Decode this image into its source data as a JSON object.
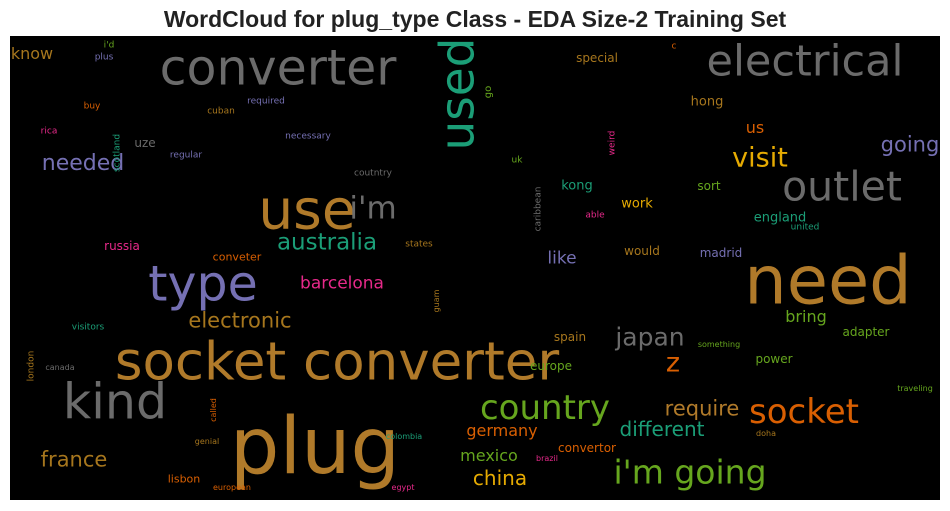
{
  "title": "WordCloud for plug_type Class - EDA Size-2 Training Set",
  "chart_data": {
    "type": "wordcloud",
    "title": "WordCloud for plug_type Class - EDA Size-2 Training Set",
    "background": "#000000",
    "words": [
      {
        "text": "plug",
        "weight": 1.0,
        "color": "#b07a2a"
      },
      {
        "text": "need",
        "weight": 0.86,
        "color": "#b07a2a"
      },
      {
        "text": "socket converter",
        "weight": 0.68,
        "color": "#b07a2a"
      },
      {
        "text": "use",
        "weight": 0.71,
        "color": "#b07a2a"
      },
      {
        "text": "kind",
        "weight": 0.63,
        "color": "#6b6b6b"
      },
      {
        "text": "type",
        "weight": 0.63,
        "color": "#7570b3"
      },
      {
        "text": "converter",
        "weight": 0.63,
        "color": "#6b6b6b"
      },
      {
        "text": "used",
        "weight": 0.6,
        "color": "#1b9e77",
        "vertical": true
      },
      {
        "text": "electrical",
        "weight": 0.55,
        "color": "#6b6b6b"
      },
      {
        "text": "outlet",
        "weight": 0.52,
        "color": "#6b6b6b"
      },
      {
        "text": "i'm",
        "weight": 0.4,
        "color": "#6b6b6b"
      },
      {
        "text": "socket",
        "weight": 0.44,
        "color": "#d95f02"
      },
      {
        "text": "country",
        "weight": 0.44,
        "color": "#66a61e"
      },
      {
        "text": "i'm going",
        "weight": 0.42,
        "color": "#66a61e"
      },
      {
        "text": "australia",
        "weight": 0.3,
        "color": "#1b9e77"
      },
      {
        "text": "visit",
        "weight": 0.34,
        "color": "#e6ab02"
      },
      {
        "text": "japan",
        "weight": 0.32,
        "color": "#6b6b6b"
      },
      {
        "text": "z",
        "weight": 0.34,
        "color": "#d95f02"
      },
      {
        "text": "needed",
        "weight": 0.28,
        "color": "#7570b3"
      },
      {
        "text": "going",
        "weight": 0.27,
        "color": "#7570b3"
      },
      {
        "text": "electronic",
        "weight": 0.27,
        "color": "#a6761d"
      },
      {
        "text": "require",
        "weight": 0.27,
        "color": "#b07a2a"
      },
      {
        "text": "different",
        "weight": 0.26,
        "color": "#1b9e77"
      },
      {
        "text": "france",
        "weight": 0.27,
        "color": "#a6761d"
      },
      {
        "text": "china",
        "weight": 0.25,
        "color": "#e6ab02"
      },
      {
        "text": "like",
        "weight": 0.22,
        "color": "#7570b3"
      },
      {
        "text": "barcelona",
        "weight": 0.22,
        "color": "#e7298a"
      },
      {
        "text": "germany",
        "weight": 0.2,
        "color": "#d95f02"
      },
      {
        "text": "mexico",
        "weight": 0.2,
        "color": "#66a61e"
      },
      {
        "text": "bring",
        "weight": 0.2,
        "color": "#66a61e"
      },
      {
        "text": "us",
        "weight": 0.2,
        "color": "#d95f02"
      },
      {
        "text": "know",
        "weight": 0.2,
        "color": "#a6761d"
      },
      {
        "text": "kong",
        "weight": 0.17,
        "color": "#1b9e77"
      },
      {
        "text": "work",
        "weight": 0.17,
        "color": "#e6ab02"
      },
      {
        "text": "england",
        "weight": 0.17,
        "color": "#1b9e77"
      },
      {
        "text": "hong",
        "weight": 0.17,
        "color": "#a6761d"
      },
      {
        "text": "sort",
        "weight": 0.16,
        "color": "#66a61e"
      },
      {
        "text": "madrid",
        "weight": 0.16,
        "color": "#7570b3"
      },
      {
        "text": "would",
        "weight": 0.16,
        "color": "#a6761d"
      },
      {
        "text": "adapter",
        "weight": 0.16,
        "color": "#66a61e"
      },
      {
        "text": "power",
        "weight": 0.15,
        "color": "#66a61e"
      },
      {
        "text": "spain",
        "weight": 0.15,
        "color": "#a6761d"
      },
      {
        "text": "europe",
        "weight": 0.15,
        "color": "#66a61e"
      },
      {
        "text": "convertor",
        "weight": 0.15,
        "color": "#d95f02"
      },
      {
        "text": "special",
        "weight": 0.15,
        "color": "#a6761d"
      },
      {
        "text": "russia",
        "weight": 0.15,
        "color": "#e7298a"
      },
      {
        "text": "uze",
        "weight": 0.15,
        "color": "#6b6b6b"
      },
      {
        "text": "lisbon",
        "weight": 0.14,
        "color": "#d95f02"
      },
      {
        "text": "conveter",
        "weight": 0.14,
        "color": "#d95f02"
      },
      {
        "text": "go",
        "weight": 0.13,
        "color": "#66a61e",
        "vertical": true
      },
      {
        "text": "buy",
        "weight": 0.11,
        "color": "#d95f02"
      },
      {
        "text": "cuban",
        "weight": 0.11,
        "color": "#a6761d"
      },
      {
        "text": "rica",
        "weight": 0.11,
        "color": "#e7298a"
      },
      {
        "text": "scotland",
        "weight": 0.11,
        "color": "#1b9e77",
        "vertical": true
      },
      {
        "text": "regular",
        "weight": 0.11,
        "color": "#7570b3"
      },
      {
        "text": "necessary",
        "weight": 0.11,
        "color": "#7570b3"
      },
      {
        "text": "required",
        "weight": 0.11,
        "color": "#7570b3"
      },
      {
        "text": "plus",
        "weight": 0.11,
        "color": "#7570b3"
      },
      {
        "text": "i'd",
        "weight": 0.11,
        "color": "#66a61e"
      },
      {
        "text": "c",
        "weight": 0.11,
        "color": "#d95f02"
      },
      {
        "text": "uk",
        "weight": 0.11,
        "color": "#66a61e"
      },
      {
        "text": "weird",
        "weight": 0.11,
        "color": "#e7298a",
        "vertical": true
      },
      {
        "text": "coutntry",
        "weight": 0.11,
        "color": "#6b6b6b"
      },
      {
        "text": "caribbean",
        "weight": 0.11,
        "color": "#6b6b6b",
        "vertical": true
      },
      {
        "text": "able",
        "weight": 0.11,
        "color": "#e7298a"
      },
      {
        "text": "states",
        "weight": 0.11,
        "color": "#a6761d"
      },
      {
        "text": "united",
        "weight": 0.11,
        "color": "#1b9e77"
      },
      {
        "text": "guam",
        "weight": 0.1,
        "color": "#a6761d",
        "vertical": true
      },
      {
        "text": "visitors",
        "weight": 0.11,
        "color": "#1b9e77"
      },
      {
        "text": "london",
        "weight": 0.11,
        "color": "#a6761d",
        "vertical": true
      },
      {
        "text": "canada",
        "weight": 0.1,
        "color": "#6b6b6b"
      },
      {
        "text": "called",
        "weight": 0.1,
        "color": "#d95f02",
        "vertical": true
      },
      {
        "text": "genial",
        "weight": 0.1,
        "color": "#a6761d"
      },
      {
        "text": "colombia",
        "weight": 0.1,
        "color": "#1b9e77"
      },
      {
        "text": "brazil",
        "weight": 0.1,
        "color": "#e7298a"
      },
      {
        "text": "european",
        "weight": 0.1,
        "color": "#d95f02"
      },
      {
        "text": "egypt",
        "weight": 0.1,
        "color": "#e7298a"
      },
      {
        "text": "doha",
        "weight": 0.1,
        "color": "#a6761d"
      },
      {
        "text": "something",
        "weight": 0.1,
        "color": "#66a61e"
      },
      {
        "text": "traveling",
        "weight": 0.1,
        "color": "#66a61e"
      }
    ]
  }
}
